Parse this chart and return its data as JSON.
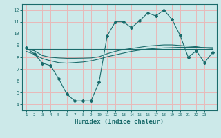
{
  "xlabel": "Humidex (Indice chaleur)",
  "ylabel": "",
  "xlim": [
    -0.5,
    23.5
  ],
  "ylim": [
    3.5,
    12.5
  ],
  "xticks": [
    0,
    1,
    2,
    3,
    4,
    5,
    6,
    7,
    8,
    9,
    10,
    11,
    12,
    13,
    14,
    15,
    16,
    17,
    18,
    19,
    20,
    21,
    22,
    23
  ],
  "yticks": [
    4,
    5,
    6,
    7,
    8,
    9,
    10,
    11,
    12
  ],
  "bg_color": "#cce9e9",
  "grid_color": "#e8b8b8",
  "line_color": "#1a6b6b",
  "line1_x": [
    0,
    1,
    2,
    3,
    4,
    5,
    6,
    7,
    8,
    9,
    10,
    11,
    12,
    13,
    14,
    15,
    16,
    17,
    18,
    19,
    20,
    21,
    22,
    23
  ],
  "line1_y": [
    8.8,
    8.3,
    7.5,
    7.3,
    6.2,
    4.9,
    4.3,
    4.3,
    4.3,
    5.9,
    9.8,
    11.0,
    11.0,
    10.5,
    11.1,
    11.75,
    11.5,
    12.0,
    11.2,
    9.85,
    8.0,
    8.55,
    7.55,
    8.4
  ],
  "line2_x": [
    0,
    1,
    2,
    3,
    4,
    5,
    6,
    7,
    8,
    9,
    10,
    11,
    12,
    13,
    14,
    15,
    16,
    17,
    18,
    19,
    20,
    21,
    22,
    23
  ],
  "line2_y": [
    8.5,
    8.25,
    7.9,
    7.7,
    7.55,
    7.5,
    7.55,
    7.6,
    7.7,
    7.85,
    8.05,
    8.2,
    8.35,
    8.5,
    8.6,
    8.7,
    8.75,
    8.8,
    8.82,
    8.85,
    8.85,
    8.85,
    8.83,
    8.82
  ],
  "line3_x": [
    0,
    1,
    2,
    3,
    4,
    5,
    6,
    7,
    8,
    9,
    10,
    11,
    12,
    13,
    14,
    15,
    16,
    17,
    18,
    19,
    20,
    21,
    22,
    23
  ],
  "line3_y": [
    8.7,
    8.55,
    8.15,
    8.0,
    7.95,
    7.92,
    7.92,
    7.93,
    7.95,
    8.05,
    8.3,
    8.5,
    8.65,
    8.75,
    8.85,
    8.95,
    9.0,
    9.05,
    9.05,
    9.0,
    8.95,
    8.9,
    8.8,
    8.75
  ],
  "line4_x": [
    0,
    23
  ],
  "line4_y": [
    8.7,
    8.7
  ]
}
